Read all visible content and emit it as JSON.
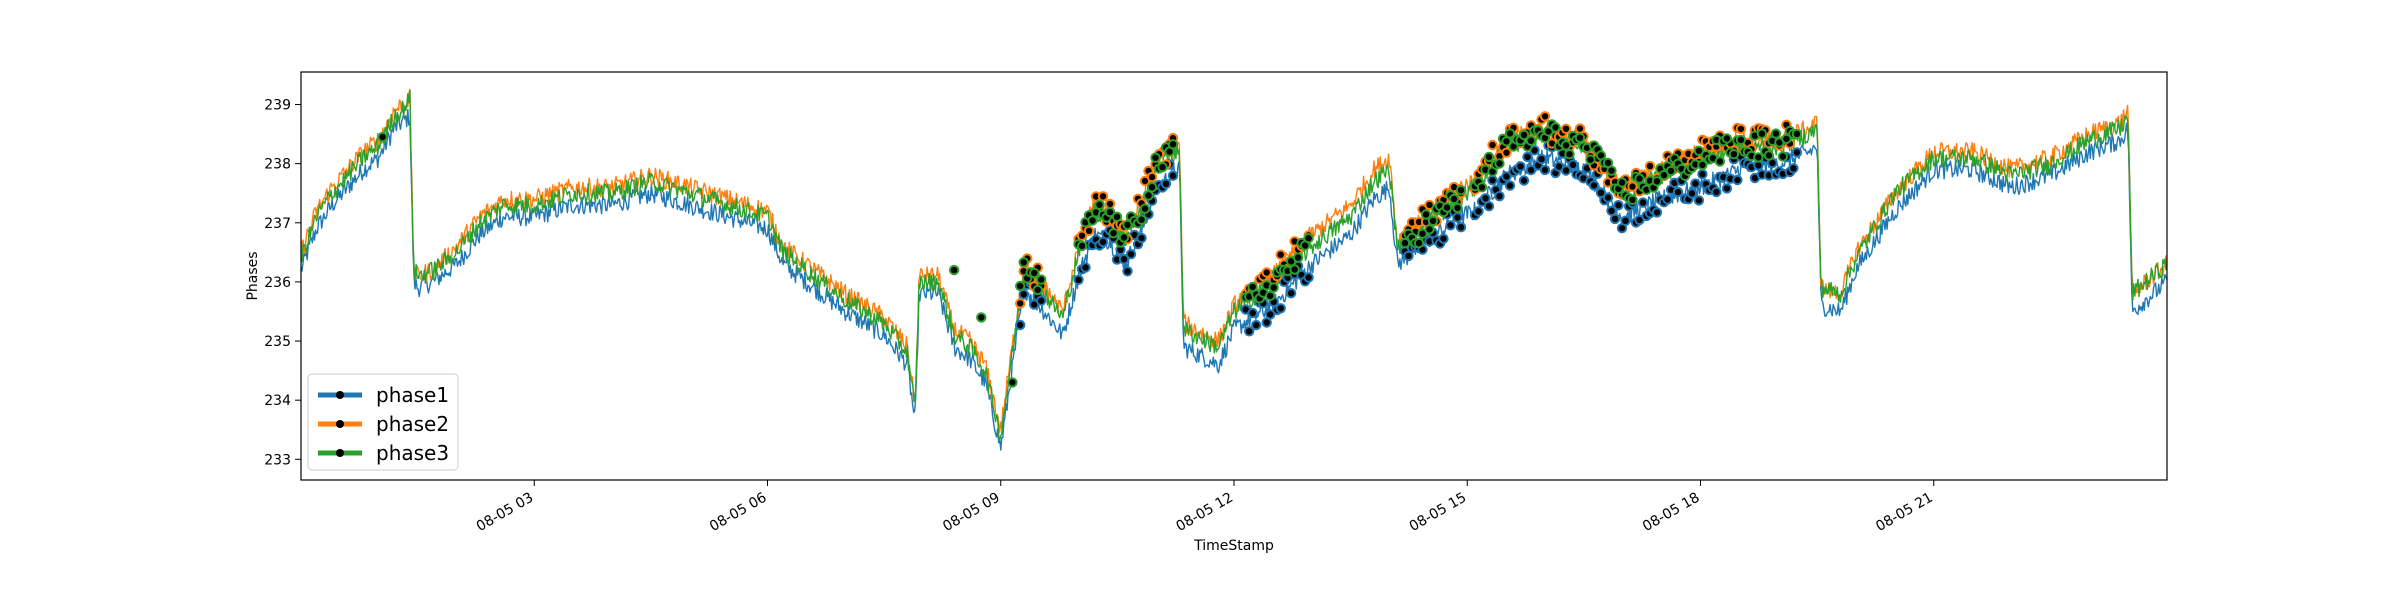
{
  "chart_data": {
    "type": "line",
    "title": "",
    "xlabel": "TimeStamp",
    "ylabel": "Phases",
    "x_unit": "hours of 08-05",
    "xlim": [
      0.0,
      24.0
    ],
    "ylim": [
      232.65,
      239.55
    ],
    "x_ticks": [
      {
        "x": 3,
        "label": "08-05 03"
      },
      {
        "x": 6,
        "label": "08-05 06"
      },
      {
        "x": 9,
        "label": "08-05 09"
      },
      {
        "x": 12,
        "label": "08-05 12"
      },
      {
        "x": 15,
        "label": "08-05 15"
      },
      {
        "x": 18,
        "label": "08-05 18"
      },
      {
        "x": 21,
        "label": "08-05 21"
      }
    ],
    "y_ticks": [
      {
        "y": 233,
        "label": "233"
      },
      {
        "y": 234,
        "label": "234"
      },
      {
        "y": 235,
        "label": "235"
      },
      {
        "y": 236,
        "label": "236"
      },
      {
        "y": 237,
        "label": "237"
      },
      {
        "y": 238,
        "label": "238"
      },
      {
        "y": 239,
        "label": "239"
      }
    ],
    "grid": false,
    "legend_position": "lower-left",
    "series": [
      {
        "name": "phase1",
        "color": "#1f77b4",
        "x": [
          0.0,
          0.2,
          0.4,
          0.6,
          0.8,
          1.0,
          1.2,
          1.3,
          1.4,
          1.45,
          1.5,
          1.7,
          2.0,
          2.3,
          2.6,
          3.0,
          3.5,
          4.0,
          4.5,
          5.0,
          5.5,
          6.0,
          6.2,
          6.5,
          7.0,
          7.5,
          7.8,
          7.9,
          7.95,
          8.2,
          8.4,
          8.6,
          8.8,
          9.0,
          9.3,
          9.5,
          9.8,
          10.0,
          10.2,
          10.4,
          10.6,
          10.8,
          11.0,
          11.2,
          11.3,
          11.35,
          11.5,
          11.8,
          12.0,
          12.5,
          13.0,
          13.5,
          13.8,
          14.0,
          14.1,
          14.5,
          14.9,
          15.1,
          15.5,
          16.0,
          16.5,
          17.0,
          17.5,
          18.0,
          18.5,
          19.0,
          19.4,
          19.5,
          19.55,
          19.8,
          20.0,
          20.5,
          21.0,
          21.5,
          22.0,
          22.5,
          23.0,
          23.4,
          23.5,
          23.55,
          24.0
        ],
        "y": [
          236.2,
          236.9,
          237.3,
          237.6,
          237.9,
          238.1,
          238.6,
          238.7,
          238.8,
          236.0,
          235.9,
          236.0,
          236.3,
          236.8,
          237.1,
          237.1,
          237.3,
          237.3,
          237.5,
          237.3,
          237.1,
          236.9,
          236.3,
          236.0,
          235.5,
          235.1,
          234.6,
          233.6,
          235.8,
          235.8,
          234.9,
          234.7,
          234.3,
          233.2,
          235.9,
          235.6,
          235.1,
          236.1,
          236.8,
          236.7,
          236.3,
          236.8,
          237.6,
          237.8,
          237.9,
          234.9,
          234.8,
          234.6,
          235.2,
          235.6,
          236.3,
          236.8,
          237.4,
          237.6,
          236.3,
          236.7,
          237.1,
          237.2,
          237.8,
          238.1,
          237.9,
          237.1,
          237.4,
          237.6,
          237.9,
          238.0,
          238.2,
          238.3,
          235.6,
          235.5,
          236.2,
          237.2,
          237.9,
          237.9,
          237.6,
          237.8,
          238.2,
          238.4,
          238.6,
          235.5,
          236.0
        ],
        "marked_ranges": [
          [
            9.25,
            9.55
          ],
          [
            10.0,
            11.25
          ],
          [
            12.15,
            13.0
          ],
          [
            14.2,
            14.95
          ],
          [
            15.1,
            19.25
          ]
        ]
      },
      {
        "name": "phase2",
        "color": "#ff7f0e",
        "x": [
          0.0,
          0.2,
          0.4,
          0.6,
          0.8,
          1.0,
          1.2,
          1.3,
          1.4,
          1.45,
          1.5,
          1.7,
          2.0,
          2.3,
          2.6,
          3.0,
          3.5,
          4.0,
          4.5,
          5.0,
          5.5,
          6.0,
          6.2,
          6.5,
          7.0,
          7.5,
          7.8,
          7.9,
          7.95,
          8.2,
          8.4,
          8.6,
          8.8,
          9.0,
          9.3,
          9.5,
          9.8,
          10.0,
          10.2,
          10.4,
          10.6,
          10.8,
          11.0,
          11.2,
          11.3,
          11.35,
          11.5,
          11.8,
          12.0,
          12.5,
          13.0,
          13.5,
          13.8,
          14.0,
          14.1,
          14.5,
          14.9,
          15.1,
          15.5,
          16.0,
          16.5,
          17.0,
          17.5,
          18.0,
          18.5,
          19.0,
          19.4,
          19.5,
          19.55,
          19.8,
          20.0,
          20.5,
          21.0,
          21.5,
          22.0,
          22.5,
          23.0,
          23.4,
          23.5,
          23.55,
          24.0
        ],
        "y": [
          236.5,
          237.2,
          237.6,
          237.9,
          238.2,
          238.4,
          238.9,
          239.0,
          239.1,
          236.2,
          236.1,
          236.2,
          236.6,
          237.1,
          237.4,
          237.4,
          237.6,
          237.6,
          237.8,
          237.6,
          237.4,
          237.2,
          236.6,
          236.3,
          235.8,
          235.4,
          234.9,
          233.9,
          236.1,
          236.1,
          235.2,
          235.0,
          234.6,
          233.5,
          236.3,
          236.0,
          235.5,
          236.6,
          237.3,
          237.2,
          236.8,
          237.3,
          238.1,
          238.2,
          238.3,
          235.3,
          235.2,
          235.0,
          235.6,
          236.1,
          236.8,
          237.3,
          237.9,
          238.1,
          236.7,
          237.1,
          237.6,
          237.7,
          238.4,
          238.6,
          238.4,
          237.6,
          237.9,
          238.2,
          238.4,
          238.4,
          238.6,
          238.7,
          235.9,
          235.8,
          236.5,
          237.5,
          238.2,
          238.2,
          237.9,
          238.1,
          238.5,
          238.7,
          238.9,
          235.8,
          236.3
        ],
        "marked_ranges": [
          [
            9.25,
            9.55
          ],
          [
            10.0,
            11.25
          ],
          [
            12.15,
            13.0
          ],
          [
            14.2,
            14.95
          ],
          [
            15.1,
            19.25
          ]
        ]
      },
      {
        "name": "phase3",
        "color": "#2ca02c",
        "x": [
          0.0,
          0.2,
          0.4,
          0.6,
          0.8,
          1.0,
          1.2,
          1.3,
          1.4,
          1.45,
          1.5,
          1.7,
          2.0,
          2.3,
          2.6,
          3.0,
          3.5,
          4.0,
          4.5,
          5.0,
          5.5,
          6.0,
          6.2,
          6.5,
          7.0,
          7.5,
          7.8,
          7.9,
          7.95,
          8.2,
          8.4,
          8.6,
          8.8,
          9.0,
          9.3,
          9.5,
          9.8,
          10.0,
          10.2,
          10.4,
          10.6,
          10.8,
          11.0,
          11.2,
          11.3,
          11.35,
          11.5,
          11.8,
          12.0,
          12.5,
          13.0,
          13.5,
          13.8,
          14.0,
          14.1,
          14.5,
          14.9,
          15.1,
          15.5,
          16.0,
          16.5,
          17.0,
          17.5,
          18.0,
          18.5,
          19.0,
          19.4,
          19.5,
          19.55,
          19.8,
          20.0,
          20.5,
          21.0,
          21.5,
          22.0,
          22.5,
          23.0,
          23.4,
          23.5,
          23.55,
          24.0
        ],
        "y": [
          236.4,
          237.1,
          237.5,
          237.8,
          238.1,
          238.3,
          238.8,
          238.9,
          239.1,
          236.2,
          236.1,
          236.2,
          236.5,
          237.0,
          237.3,
          237.3,
          237.5,
          237.5,
          237.7,
          237.5,
          237.3,
          237.1,
          236.5,
          236.2,
          235.7,
          235.3,
          234.8,
          233.8,
          236.0,
          236.0,
          235.1,
          234.9,
          234.5,
          233.4,
          236.2,
          235.9,
          235.4,
          236.5,
          237.2,
          237.1,
          236.7,
          237.2,
          238.0,
          238.1,
          238.2,
          235.2,
          235.1,
          234.9,
          235.5,
          236.0,
          236.6,
          237.1,
          237.7,
          237.9,
          236.6,
          237.0,
          237.4,
          237.6,
          238.3,
          238.5,
          238.3,
          237.5,
          237.8,
          238.1,
          238.3,
          238.3,
          238.5,
          238.6,
          235.9,
          235.8,
          236.4,
          237.5,
          238.1,
          238.1,
          237.8,
          238.0,
          238.4,
          238.6,
          238.8,
          235.8,
          236.3
        ],
        "marked_ranges": [
          [
            9.25,
            9.55
          ],
          [
            10.0,
            11.25
          ],
          [
            12.15,
            13.0
          ],
          [
            14.2,
            14.95
          ],
          [
            15.1,
            19.25
          ]
        ]
      }
    ],
    "annotations": [
      {
        "x": 1.05,
        "y": 238.45
      },
      {
        "x": 8.4,
        "y": 236.2
      },
      {
        "x": 8.75,
        "y": 235.4
      },
      {
        "x": 9.15,
        "y": 234.3
      }
    ]
  }
}
